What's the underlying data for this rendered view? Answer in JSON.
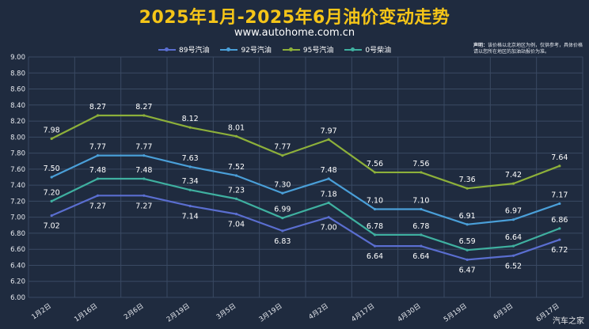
{
  "header": {
    "title": "2025年1月-2025年6月油价变动走势",
    "subtitle": "www.autohome.com.cn"
  },
  "note": {
    "label": "声明：",
    "text": "该价格以北京地区为例，仅供参考，具体价格请以您所在地区的加油站报价为准。"
  },
  "watermark": "汽车之家",
  "colors": {
    "background": "#1f2b3f",
    "grid": "#3a4a63",
    "axis_text": "#e6e9ef",
    "series_89": "#5a6ed0",
    "series_92": "#4a9fd8",
    "series_95": "#8db03a",
    "series_0": "#3fb0a0"
  },
  "chart_data": {
    "type": "line",
    "title": "2025年1月-2025年6月油价变动走势",
    "xlabel": "",
    "ylabel": "",
    "ylim": [
      6.0,
      9.0
    ],
    "ytick_step": 0.2,
    "grid": true,
    "legend_position": "top",
    "categories": [
      "1月2日",
      "1月16日",
      "2月6日",
      "2月19日",
      "3月5日",
      "3月19日",
      "4月2日",
      "4月17日",
      "4月30日",
      "5月19日",
      "6月3日",
      "6月17日"
    ],
    "series": [
      {
        "name": "89号汽油",
        "color": "#5a6ed0",
        "values": [
          7.02,
          7.27,
          7.27,
          7.14,
          7.04,
          6.83,
          7.0,
          6.64,
          6.64,
          6.47,
          6.52,
          6.72
        ]
      },
      {
        "name": "92号汽油",
        "color": "#4a9fd8",
        "values": [
          7.5,
          7.77,
          7.77,
          7.63,
          7.52,
          7.3,
          7.48,
          7.1,
          7.1,
          6.91,
          6.97,
          7.17
        ]
      },
      {
        "name": "95号汽油",
        "color": "#8db03a",
        "values": [
          7.98,
          8.27,
          8.27,
          8.12,
          8.01,
          7.77,
          7.97,
          7.56,
          7.56,
          7.36,
          7.42,
          7.64
        ]
      },
      {
        "name": "0号柴油",
        "color": "#3fb0a0",
        "values": [
          7.2,
          7.48,
          7.48,
          7.34,
          7.23,
          6.99,
          7.18,
          6.78,
          6.78,
          6.59,
          6.64,
          6.86
        ]
      }
    ]
  }
}
